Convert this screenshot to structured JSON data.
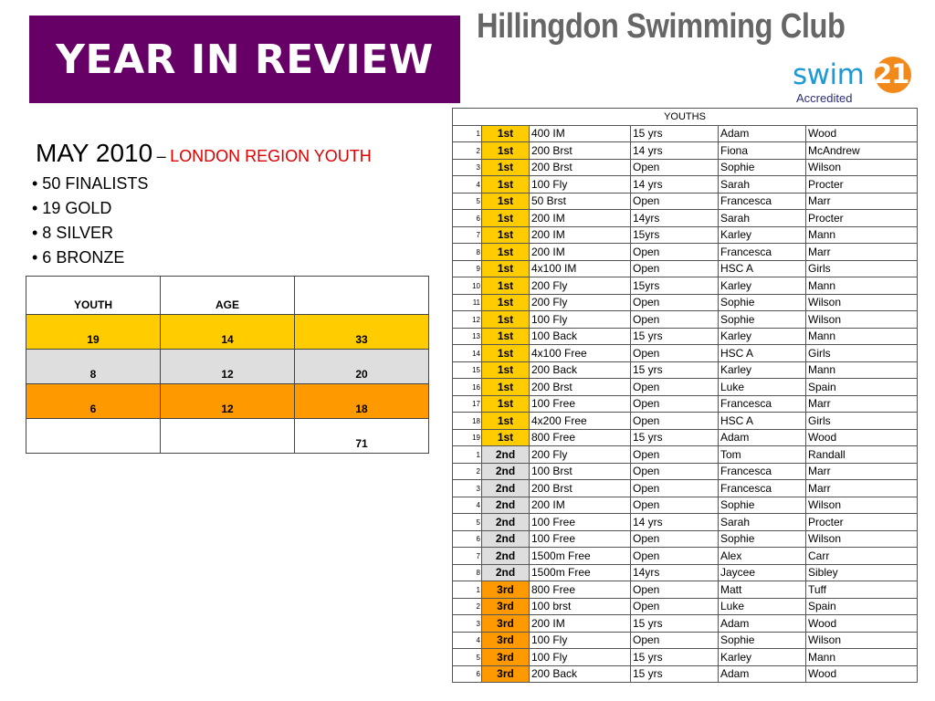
{
  "banner": {
    "title": "YEAR IN REVIEW"
  },
  "club": {
    "name": "Hillingdon Swimming Club"
  },
  "logo": {
    "swim": "swim",
    "number": "21",
    "accredited": "Accredited"
  },
  "summary": {
    "month": "MAY 2010",
    "dash": "–",
    "region": "LONDON REGION YOUTH",
    "items": [
      "• 50 FINALISTS",
      "• 19  GOLD",
      "• 8 SILVER",
      "• 6 BRONZE"
    ]
  },
  "stats": {
    "headers": [
      "YOUTH",
      "AGE",
      ""
    ],
    "rows": [
      [
        "19",
        "14",
        "33"
      ],
      [
        "8",
        "12",
        "20"
      ],
      [
        "6",
        "12",
        "18"
      ],
      [
        "",
        "",
        "71"
      ]
    ]
  },
  "results": {
    "title": "YOUTHS",
    "rows": [
      [
        "1",
        "1st",
        "400 IM",
        "15 yrs",
        "Adam",
        "Wood"
      ],
      [
        "2",
        "1st",
        "200 Brst",
        "14 yrs",
        "Fiona",
        "McAndrew"
      ],
      [
        "3",
        "1st",
        "200 Brst",
        "Open",
        "Sophie",
        "Wilson"
      ],
      [
        "4",
        "1st",
        "100 Fly",
        "14 yrs",
        "Sarah",
        "Procter"
      ],
      [
        "5",
        "1st",
        "50 Brst",
        "Open",
        "Francesca",
        "Marr"
      ],
      [
        "6",
        "1st",
        "200 IM",
        "14yrs",
        "Sarah",
        "Procter"
      ],
      [
        "7",
        "1st",
        "200 IM",
        "15yrs",
        "Karley",
        "Mann"
      ],
      [
        "8",
        "1st",
        "200 IM",
        "Open",
        "Francesca",
        "Marr"
      ],
      [
        "9",
        "1st",
        "4x100 IM",
        "Open",
        "HSC A",
        "Girls"
      ],
      [
        "10",
        "1st",
        "200 Fly",
        "15yrs",
        "Karley",
        "Mann"
      ],
      [
        "11",
        "1st",
        "200 Fly",
        "Open",
        "Sophie",
        "Wilson"
      ],
      [
        "12",
        "1st",
        "100 Fly",
        "Open",
        "Sophie",
        "Wilson"
      ],
      [
        "13",
        "1st",
        "100 Back",
        "15 yrs",
        "Karley",
        "Mann"
      ],
      [
        "14",
        "1st",
        "4x100 Free",
        "Open",
        "HSC A",
        "Girls"
      ],
      [
        "15",
        "1st",
        "200 Back",
        "15 yrs",
        "Karley",
        "Mann"
      ],
      [
        "16",
        "1st",
        "200 Brst",
        "Open",
        "Luke",
        "Spain"
      ],
      [
        "17",
        "1st",
        "100 Free",
        "Open",
        "Francesca",
        "Marr"
      ],
      [
        "18",
        "1st",
        "4x200 Free",
        "Open",
        "HSC A",
        "Girls"
      ],
      [
        "19",
        "1st",
        "800 Free",
        "15 yrs",
        "Adam",
        "Wood"
      ],
      [
        "1",
        "2nd",
        "200 Fly",
        "Open",
        "Tom",
        "Randall"
      ],
      [
        "2",
        "2nd",
        "100 Brst",
        "Open",
        "Francesca",
        "Marr"
      ],
      [
        "3",
        "2nd",
        "200 Brst",
        "Open",
        "Francesca",
        "Marr"
      ],
      [
        "4",
        "2nd",
        "200 IM",
        "Open",
        "Sophie",
        "Wilson"
      ],
      [
        "5",
        "2nd",
        "100 Free",
        "14 yrs",
        "Sarah",
        "Procter"
      ],
      [
        "6",
        "2nd",
        "100 Free",
        "Open",
        "Sophie",
        "Wilson"
      ],
      [
        "7",
        "2nd",
        "1500m Free",
        "Open",
        "Alex",
        "Carr"
      ],
      [
        "8",
        "2nd",
        "1500m Free",
        "14yrs",
        "Jaycee",
        "Sibley"
      ],
      [
        "1",
        "3rd",
        "800 Free",
        "Open",
        "Matt",
        "Tuff"
      ],
      [
        "2",
        "3rd",
        "100 brst",
        "Open",
        "Luke",
        "Spain"
      ],
      [
        "3",
        "3rd",
        "200 IM",
        "15 yrs",
        "Adam",
        "Wood"
      ],
      [
        "4",
        "3rd",
        "100 Fly",
        "Open",
        "Sophie",
        "Wilson"
      ],
      [
        "5",
        "3rd",
        "100 Fly",
        "15 yrs",
        "Karley",
        "Mann"
      ],
      [
        "6",
        "3rd",
        "200 Back",
        "15 yrs",
        "Adam",
        "Wood"
      ]
    ]
  },
  "colors": {
    "banner": "#660066",
    "gold": "#ffcc00",
    "silver": "#dedede",
    "bronze": "#ff9900",
    "region_text": "#e00000",
    "club_text": "#666666",
    "logo_blue": "#1c9ad6",
    "logo_orange": "#f28a1b"
  }
}
